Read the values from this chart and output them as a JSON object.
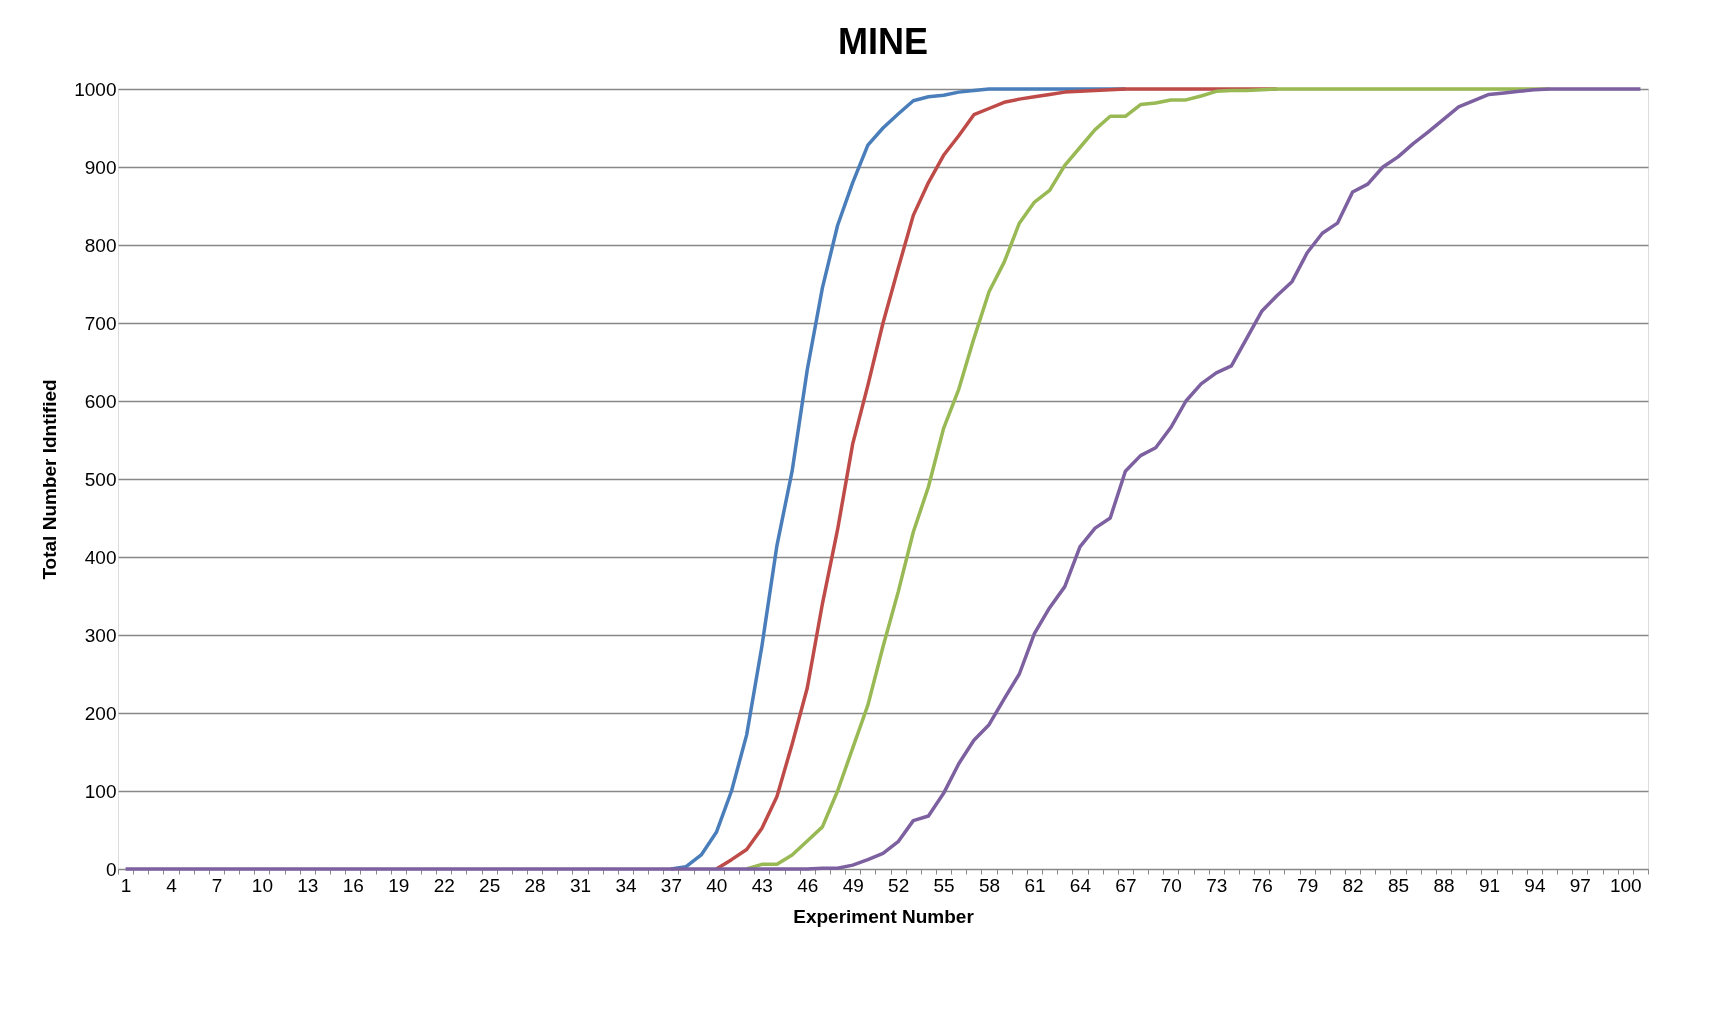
{
  "chart_data": {
    "type": "line",
    "title": "MINE",
    "xlabel": "Experiment Number",
    "ylabel": "Total Number Idntified",
    "categories": [
      "1",
      null,
      null,
      "4",
      null,
      null,
      "7",
      null,
      null,
      "10",
      null,
      null,
      "13",
      null,
      null,
      "16",
      null,
      null,
      "19",
      null,
      null,
      "22",
      null,
      null,
      "25",
      null,
      null,
      "28",
      null,
      null,
      "31",
      null,
      null,
      "34",
      null,
      null,
      "37",
      null,
      null,
      "40",
      null,
      null,
      "43",
      null,
      null,
      "46",
      null,
      null,
      "49",
      null,
      null,
      "52",
      null,
      null,
      "55",
      null,
      null,
      "58",
      null,
      null,
      "61",
      null,
      null,
      "64",
      null,
      null,
      "67",
      null,
      null,
      "70",
      null,
      null,
      "73",
      null,
      null,
      "76",
      null,
      null,
      "79",
      null,
      null,
      "82",
      null,
      null,
      "85",
      null,
      null,
      "88",
      null,
      null,
      "91",
      null,
      null,
      "94",
      null,
      null,
      "97",
      null,
      null,
      "100",
      null
    ],
    "series": [
      {
        "color": "#4a7ebb",
        "values": [
          null,
          null,
          null,
          null,
          null,
          null,
          null,
          null,
          null,
          null,
          null,
          null,
          null,
          null,
          null,
          null,
          null,
          null,
          null,
          null,
          null,
          null,
          null,
          null,
          null,
          null,
          null,
          null,
          null,
          null,
          null,
          null,
          null,
          null,
          null,
          null,
          0,
          3,
          18,
          47,
          100,
          172,
          285,
          415,
          510,
          640,
          745,
          825,
          880,
          928,
          950,
          968,
          985,
          990,
          992,
          996,
          998,
          1000,
          1000,
          1000,
          1000,
          1000,
          1000,
          1000,
          1000,
          1000,
          1000,
          null,
          null,
          null,
          null,
          null,
          null,
          null,
          null,
          null,
          null,
          null,
          null,
          null,
          null,
          null,
          null,
          null,
          null,
          null,
          null,
          null,
          null,
          null,
          null,
          null,
          null,
          null,
          null,
          null,
          null,
          null,
          null,
          null,
          null
        ]
      },
      {
        "color": "#be4b48",
        "values": [
          null,
          null,
          null,
          null,
          null,
          null,
          null,
          null,
          null,
          null,
          null,
          null,
          null,
          null,
          null,
          null,
          null,
          null,
          null,
          null,
          null,
          null,
          null,
          null,
          null,
          null,
          null,
          null,
          null,
          null,
          null,
          null,
          null,
          null,
          null,
          null,
          null,
          null,
          null,
          0,
          12,
          25,
          52,
          93,
          160,
          232,
          340,
          435,
          545,
          620,
          700,
          770,
          838,
          880,
          915,
          940,
          967,
          975,
          983,
          987,
          990,
          993,
          996,
          997,
          998,
          999,
          1000,
          1000,
          1000,
          1000,
          1000,
          1000,
          1000,
          1000,
          1000,
          1000,
          1000,
          null,
          null,
          null,
          null,
          null,
          null,
          null,
          null,
          null,
          null,
          null,
          null,
          null,
          null,
          null,
          null,
          null,
          null,
          null,
          null,
          null,
          null,
          null,
          null
        ]
      },
      {
        "color": "#98b954",
        "values": [
          null,
          null,
          null,
          null,
          null,
          null,
          null,
          null,
          null,
          null,
          null,
          null,
          null,
          null,
          null,
          null,
          null,
          null,
          null,
          null,
          null,
          null,
          null,
          null,
          null,
          null,
          null,
          null,
          null,
          null,
          null,
          null,
          null,
          null,
          null,
          null,
          null,
          null,
          null,
          null,
          null,
          0,
          6,
          6,
          18,
          36,
          54,
          100,
          155,
          210,
          285,
          355,
          432,
          490,
          565,
          615,
          680,
          740,
          778,
          828,
          855,
          870,
          902,
          925,
          948,
          965,
          965,
          980,
          982,
          986,
          986,
          991,
          997,
          998,
          998,
          999,
          1000,
          1000,
          1000,
          1000,
          1000,
          1000,
          1000,
          1000,
          1000,
          1000,
          1000,
          1000,
          1000,
          1000,
          1000,
          1000,
          1000,
          1000,
          1000,
          null,
          null,
          null,
          null,
          null,
          null
        ]
      },
      {
        "color": "#7d60a0",
        "values": [
          0,
          0,
          0,
          0,
          0,
          0,
          0,
          0,
          0,
          0,
          0,
          0,
          0,
          0,
          0,
          0,
          0,
          0,
          0,
          0,
          0,
          0,
          0,
          0,
          0,
          0,
          0,
          0,
          0,
          0,
          0,
          0,
          0,
          0,
          0,
          0,
          0,
          0,
          0,
          0,
          0,
          0,
          0,
          0,
          0,
          0,
          1,
          1,
          5,
          12,
          20,
          35,
          62,
          68,
          97,
          135,
          165,
          185,
          218,
          250,
          302,
          335,
          362,
          413,
          437,
          450,
          510,
          530,
          540,
          566,
          600,
          622,
          636,
          645,
          680,
          715,
          735,
          753,
          790,
          815,
          828,
          868,
          878,
          900,
          913,
          930,
          945,
          961,
          977,
          985,
          993,
          995,
          997,
          999,
          1000,
          1000,
          1000,
          1000,
          1000,
          1000,
          1000
        ]
      }
    ],
    "ylim": [
      0,
      1000
    ],
    "yticks": [
      0,
      100,
      200,
      300,
      400,
      500,
      600,
      700,
      800,
      900,
      1000
    ],
    "grid": "y",
    "legend": false,
    "marker": "none",
    "line_style": "solid"
  }
}
